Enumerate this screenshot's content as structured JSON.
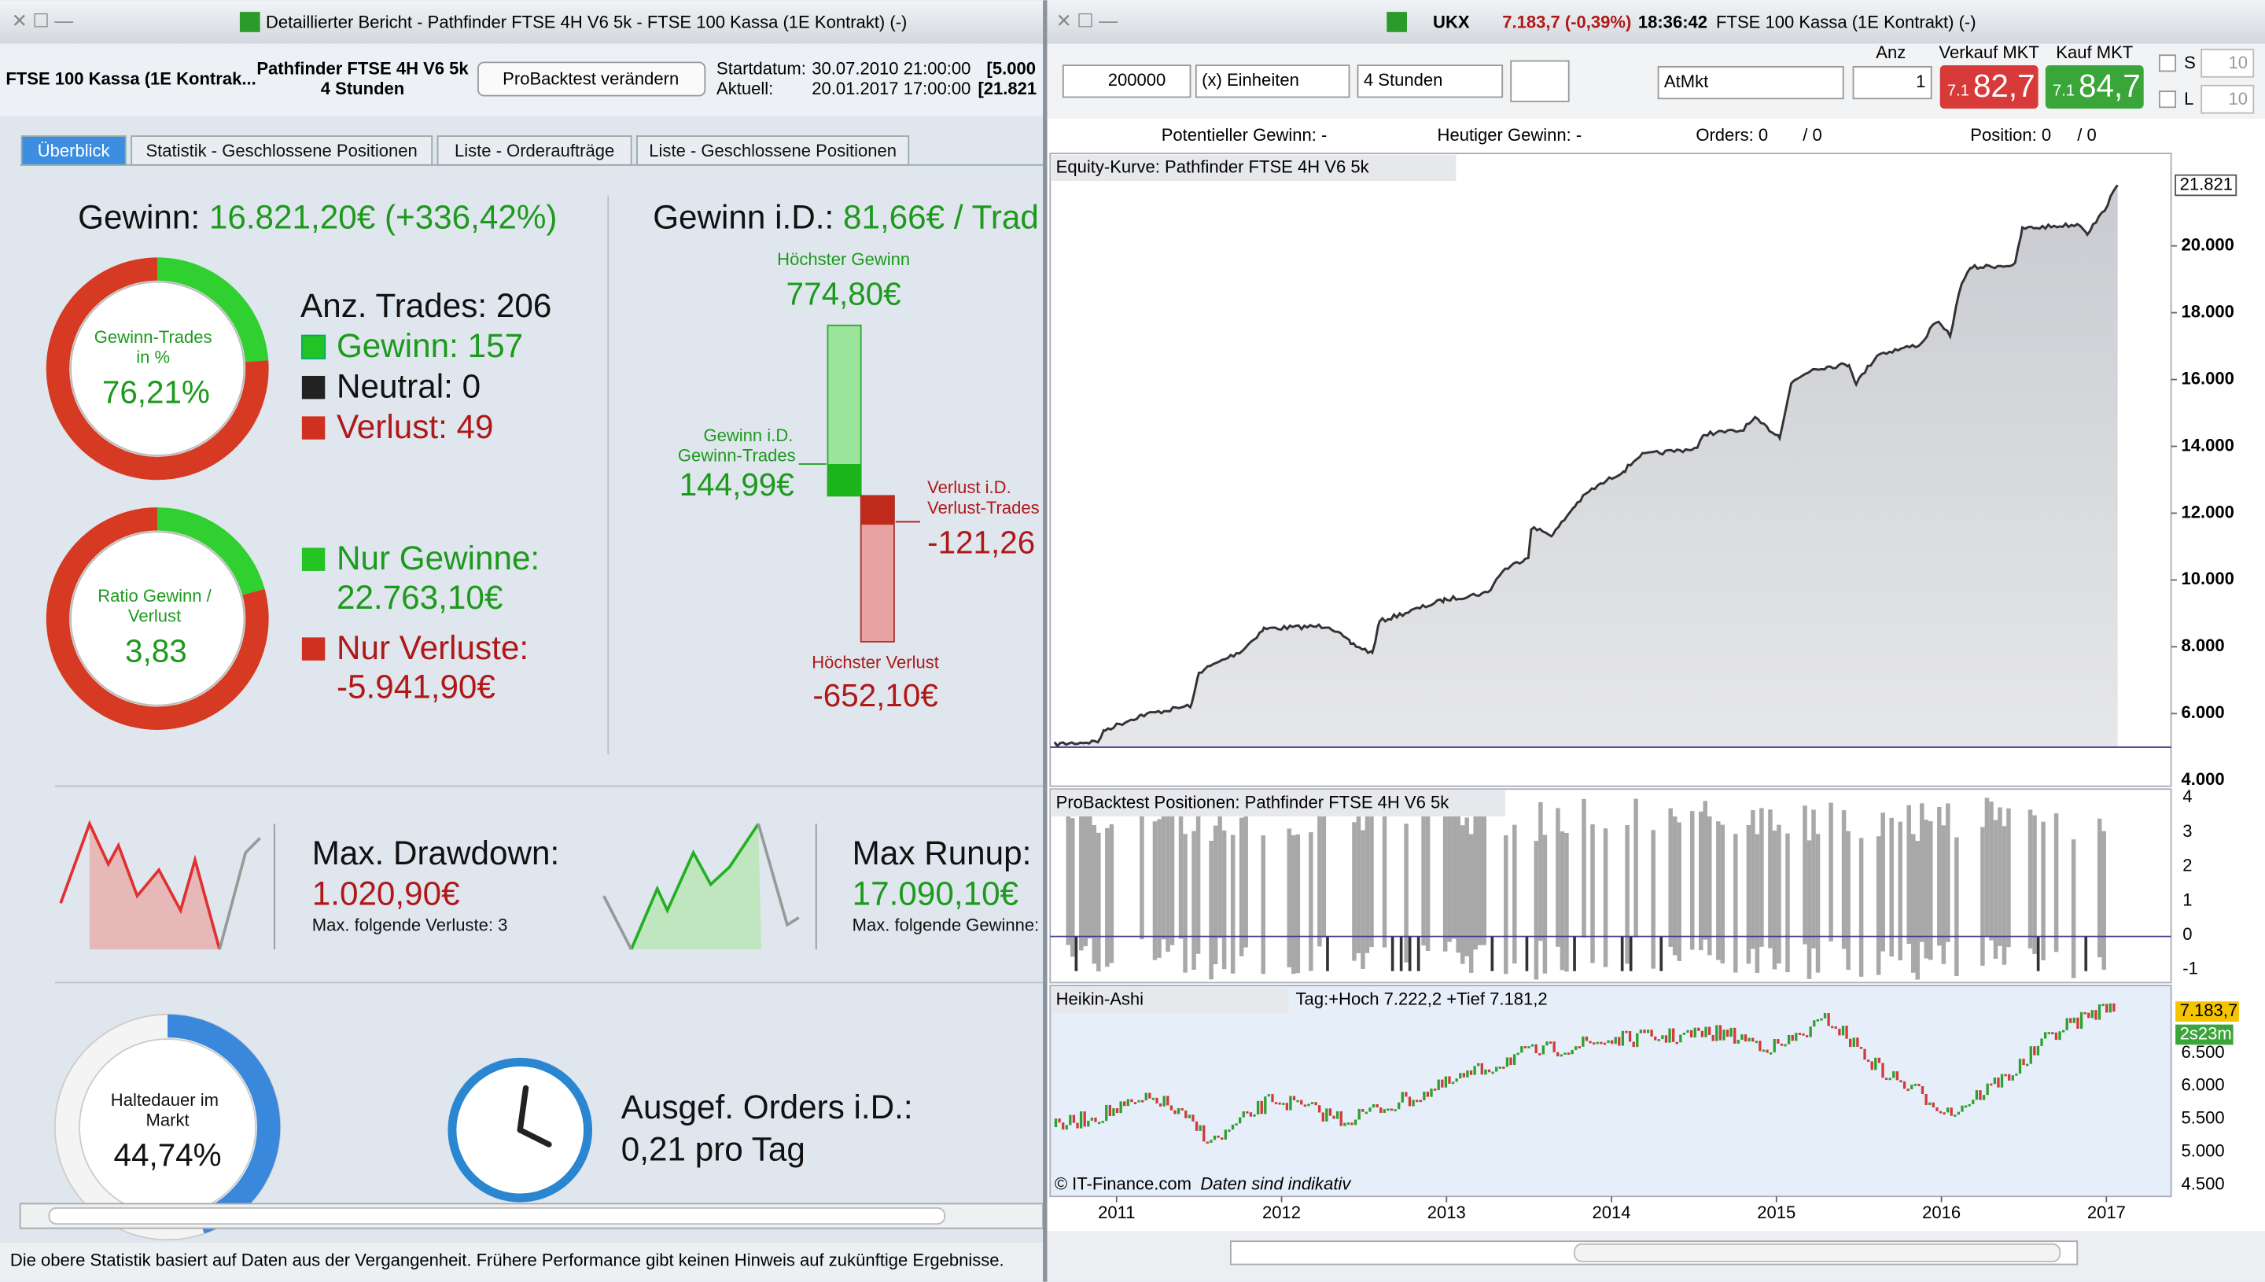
{
  "left": {
    "title": "Detaillierter Bericht - Pathfinder FTSE 4H V6 5k - FTSE 100 Kassa (1E Kontrakt) (-)",
    "header": {
      "instrument": "FTSE 100 Kassa (1E Kontrak...",
      "system": "Pathfinder FTSE 4H V6 5k",
      "timeframe": "4 Stunden",
      "button": "ProBacktest verändern",
      "start_label": "Startdatum:",
      "start": "30.07.2010 21:00:00",
      "start_value": "[5.000",
      "current_label": "Aktuell:",
      "current": "20.01.2017 17:00:00",
      "current_value": "[21.821"
    },
    "tabs": [
      "Überblick",
      "Statistik - Geschlossene Positionen",
      "Liste - Orderaufträge",
      "Liste - Geschlossene Positionen"
    ],
    "profit": {
      "label": "Gewinn:",
      "value": "16.821,20€ (+336,42%)"
    },
    "winrate": {
      "label_1": "Gewinn-Trades",
      "label_2": "in %",
      "value": "76,21%"
    },
    "trades": {
      "total": "Anz. Trades: 206",
      "won": "Gewinn: 157",
      "neutral": "Neutral: 0",
      "lost": "Verlust: 49"
    },
    "ratio": {
      "label_1": "Ratio Gewinn /",
      "label_2": "Verlust",
      "value": "3,83"
    },
    "sums": {
      "gain_label": "Nur Gewinne:",
      "gain": "22.763,10€",
      "loss_label": "Nur Verluste:",
      "loss": "-5.941,90€"
    },
    "avg": {
      "label": "Gewinn i.D.:",
      "value": "81,66€ / Trad",
      "best_label": "Höchster Gewinn",
      "best": "774,80€",
      "avg_win_label_1": "Gewinn i.D.",
      "avg_win_label_2": "Gewinn-Trades",
      "avg_win": "144,99€",
      "avg_loss_label_1": "Verlust i.D.",
      "avg_loss_label_2": "Verlust-Trades",
      "avg_loss": "-121,26",
      "worst_label": "Höchster Verlust",
      "worst": "-652,10€"
    },
    "drawdown": {
      "label": "Max. Drawdown:",
      "value": "1.020,90€",
      "sub": "Max. folgende Verluste: 3"
    },
    "runup": {
      "label": "Max Runup:",
      "value": "17.090,10€",
      "sub": "Max. folgende Gewinne:"
    },
    "holding": {
      "label_1": "Haltedauer im",
      "label_2": "Markt",
      "value": "44,74%"
    },
    "orders": {
      "label": "Ausgef. Orders i.D.:",
      "value": "0,21 pro Tag"
    },
    "footer": "Die obere Statistik basiert auf Daten aus der Vergangenheit. Frühere Performance gibt keinen Hinweis auf zukünftige Ergebnisse."
  },
  "right": {
    "title": {
      "symbol": "UKX",
      "price": "7.183,7 (-0,39%)",
      "time": "18:36:42",
      "name": "FTSE 100 Kassa (1E Kontrakt) (-)"
    },
    "toolbar": {
      "quantity": "200000",
      "units": "(x) Einheiten",
      "period": "4 Stunden",
      "order_type": "AtMkt",
      "anz_label": "Anz",
      "anz": "1",
      "sell_label": "Verkauf MKT",
      "sell_prefix": "7.1",
      "sell": "82,7",
      "buy_label": "Kauf MKT",
      "buy_prefix": "7.1",
      "buy": "84,7",
      "s_label": "S",
      "s_value": "10",
      "l_label": "L",
      "l_value": "10"
    },
    "info": {
      "potential": "Potentieller Gewinn: -",
      "today": "Heutiger Gewinn: -",
      "orders": "Orders: 0",
      "orders_b": "/ 0",
      "position": "Position: 0",
      "position_b": "/ 0"
    },
    "equity": {
      "title": "Equity-Kurve: Pathfinder FTSE 4H V6 5k",
      "ticks": [
        "4.000",
        "6.000",
        "8.000",
        "10.000",
        "12.000",
        "14.000",
        "16.000",
        "18.000",
        "20.000"
      ],
      "last": "21.821"
    },
    "positions": {
      "title": "ProBacktest Positionen: Pathfinder FTSE 4H V6 5k",
      "ticks": [
        "4",
        "3",
        "2",
        "1",
        "0",
        "-1"
      ]
    },
    "heikin": {
      "title": "Heikin-Ashi",
      "info": "Tag:+Hoch 7.222,2 +Tief 7.181,2",
      "ticks": [
        "4.500",
        "5.000",
        "5.500",
        "6.000",
        "6.500"
      ],
      "price": "7.183,7",
      "countdown": "2s23m",
      "copyright": "© IT-Finance.com",
      "note": "Daten sind indikativ"
    },
    "years": [
      "2011",
      "2012",
      "2013",
      "2014",
      "2015",
      "2016",
      "2017"
    ]
  }
}
